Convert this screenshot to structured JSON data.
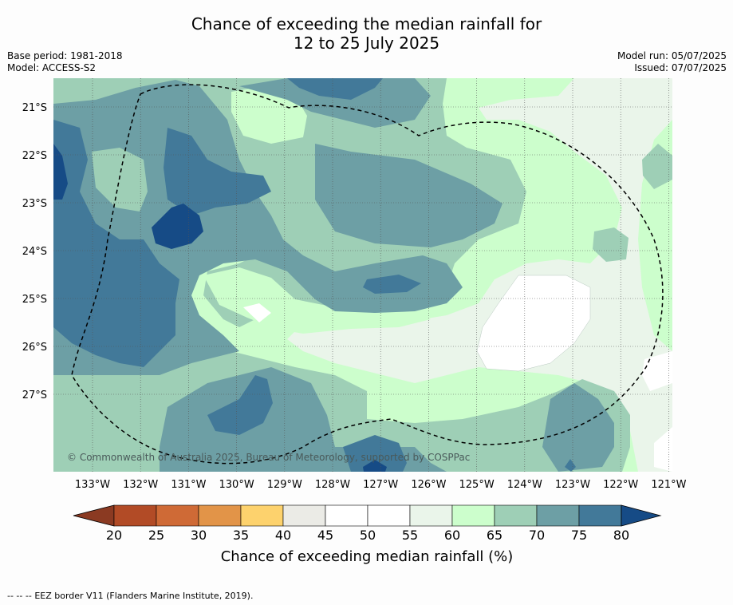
{
  "header": {
    "title_line1": "Chance of exceeding the median rainfall for",
    "title_line2": "12 to 25 July 2025",
    "base_period": "Base period: 1981-2018",
    "model": "Model: ACCESS-S2",
    "model_run": "Model run: 05/07/2025",
    "issued": "Issued: 07/07/2025"
  },
  "map": {
    "latitude_labels": [
      "21°S",
      "22°S",
      "23°S",
      "24°S",
      "25°S",
      "26°S",
      "27°S"
    ],
    "longitude_labels": [
      "133°W",
      "132°W",
      "131°W",
      "130°W",
      "129°W",
      "128°W",
      "127°W",
      "126°W",
      "125°W",
      "124°W",
      "123°W",
      "122°W",
      "121°W"
    ],
    "copyright": "© Commonwealth of Australia 2025, Bureau of Meteorology, supported by COSPPac"
  },
  "colorbar": {
    "ticks": [
      "20",
      "25",
      "30",
      "35",
      "40",
      "45",
      "50",
      "55",
      "60",
      "65",
      "70",
      "75",
      "80"
    ],
    "colors": [
      "#b24b26",
      "#cf6a36",
      "#e29448",
      "#fdd26d",
      "#ebebe6",
      "#ffffff",
      "#ffffff",
      "#eaf5ea",
      "#ccfecc",
      "#9ecfb6",
      "#6d9fa5",
      "#427999"
    ],
    "under_color": "#8b3a22",
    "over_color": "#164b86",
    "label": "Chance of exceeding median rainfall (%)"
  },
  "legend": {
    "eez_marker": "-- -- --",
    "eez_text": "EEZ border V11 (Flanders Marine Institute, 2019)."
  }
}
